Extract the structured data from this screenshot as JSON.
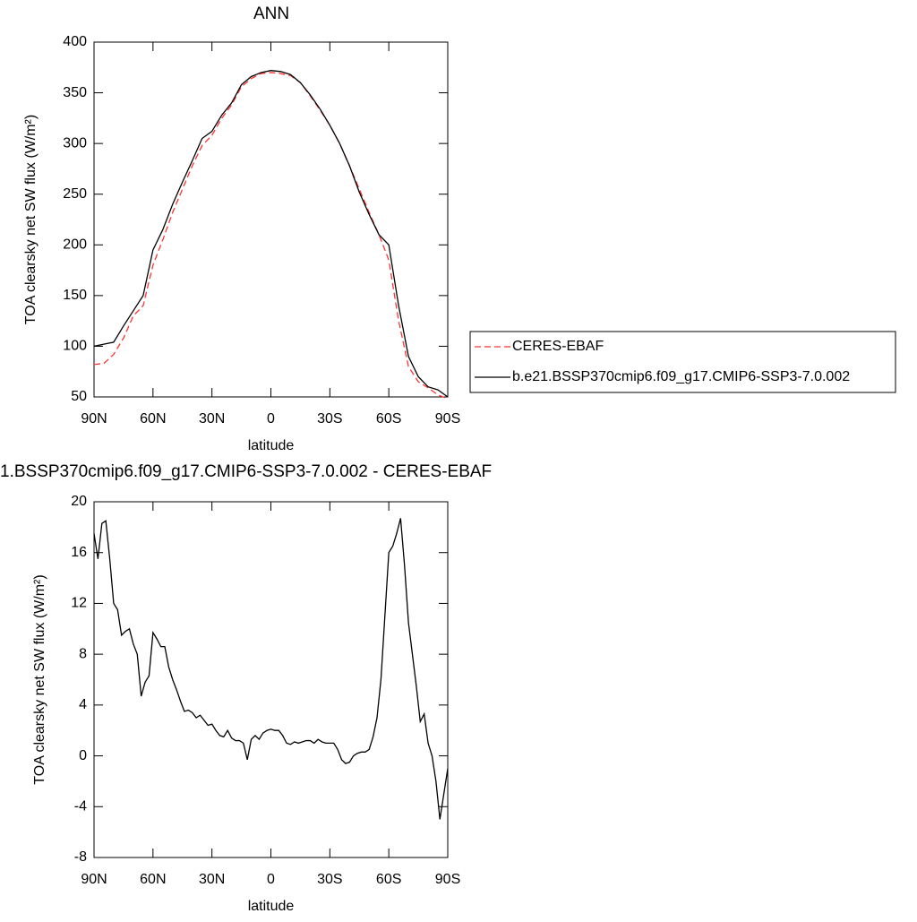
{
  "chart_data": [
    {
      "type": "line",
      "title": "ANN",
      "x_label": "latitude",
      "y_label": "TOA clearsky net SW flux (W/m²)",
      "x": [
        90,
        85,
        80,
        75,
        70,
        65,
        60,
        55,
        50,
        45,
        40,
        35,
        30,
        25,
        20,
        15,
        10,
        5,
        0,
        -5,
        -10,
        -15,
        -20,
        -25,
        -30,
        -35,
        -40,
        -45,
        -50,
        -55,
        -60,
        -65,
        -70,
        -75,
        -80,
        -85,
        -90
      ],
      "series": [
        {
          "name": "CERES-EBAF",
          "color": "#ff3333",
          "style": "dashed",
          "values": [
            82,
            83,
            92,
            108,
            130,
            140,
            180,
            205,
            232,
            255,
            278,
            298,
            308,
            325,
            338,
            356,
            364,
            369,
            370,
            369,
            367,
            360,
            347,
            333,
            318,
            300,
            278,
            255,
            232,
            210,
            185,
            125,
            80,
            65,
            59,
            52,
            48
          ]
        },
        {
          "name": "b.e21.BSSP370cmip6.f09_g17.CMIP6-SSP3-7.0.002",
          "color": "#000000",
          "style": "solid",
          "values": [
            100,
            102,
            104,
            120,
            135,
            150,
            195,
            215,
            240,
            262,
            283,
            305,
            312,
            328,
            340,
            358,
            366,
            370,
            372,
            371,
            368,
            360,
            348,
            334,
            318,
            300,
            278,
            252,
            230,
            210,
            200,
            140,
            90,
            70,
            60,
            57,
            50
          ]
        }
      ],
      "xlim": [
        90,
        -90
      ],
      "xticks": [
        {
          "value": 90,
          "label": "90N"
        },
        {
          "value": 60,
          "label": "60N"
        },
        {
          "value": 30,
          "label": "30N"
        },
        0,
        {
          "value": -30,
          "label": "30S"
        },
        {
          "value": -60,
          "label": "60S"
        },
        {
          "value": -90,
          "label": "90S"
        }
      ],
      "ylim": [
        50,
        400
      ],
      "yticks": [
        50,
        100,
        150,
        200,
        250,
        300,
        350,
        400
      ],
      "legend": "right"
    },
    {
      "type": "line",
      "title": "1.BSSP370cmip6.f09_g17.CMIP6-SSP3-7.0.002 - CERES-EBAF",
      "x_label": "latitude",
      "y_label": "TOA clearsky net SW flux (W/m²)",
      "x": [
        90,
        88,
        86,
        84,
        82,
        80,
        78,
        76,
        74,
        72,
        70,
        68,
        66,
        64,
        62,
        60,
        58,
        56,
        54,
        52,
        50,
        48,
        46,
        44,
        42,
        40,
        38,
        36,
        34,
        32,
        30,
        28,
        26,
        24,
        22,
        20,
        18,
        16,
        14,
        12,
        10,
        8,
        6,
        4,
        2,
        0,
        -2,
        -4,
        -6,
        -8,
        -10,
        -12,
        -14,
        -16,
        -18,
        -20,
        -22,
        -24,
        -26,
        -28,
        -30,
        -32,
        -34,
        -36,
        -38,
        -40,
        -42,
        -44,
        -46,
        -48,
        -50,
        -52,
        -54,
        -56,
        -58,
        -60,
        -62,
        -64,
        -66,
        -68,
        -70,
        -72,
        -74,
        -76,
        -78,
        -80,
        -82,
        -84,
        -86,
        -88,
        -90
      ],
      "series": [
        {
          "color": "#000000",
          "style": "solid",
          "values": [
            17.5,
            15.5,
            18.3,
            18.5,
            15.5,
            12,
            11.5,
            9.5,
            9.8,
            10,
            8.8,
            8,
            4.7,
            5.8,
            6.3,
            9.7,
            9.2,
            8.6,
            8.6,
            7.0,
            6.0,
            5.2,
            4.3,
            3.5,
            3.6,
            3.4,
            3.0,
            3.2,
            2.8,
            2.4,
            2.5,
            2.0,
            1.6,
            1.5,
            2.0,
            1.4,
            1.2,
            1.2,
            1.0,
            -0.3,
            1.3,
            1.6,
            1.3,
            1.8,
            2.0,
            2.1,
            2.0,
            2.0,
            1.6,
            1.0,
            0.9,
            1.1,
            1.0,
            1.1,
            1.2,
            1.2,
            1.0,
            1.3,
            1.1,
            1.0,
            1.0,
            1.0,
            0.5,
            -0.3,
            -0.6,
            -0.5,
            0.0,
            0.2,
            0.3,
            0.3,
            0.5,
            1.5,
            3,
            6,
            11,
            16,
            16.5,
            17.5,
            18.7,
            15,
            10.5,
            8,
            5.5,
            2.7,
            3.3,
            1.0,
            0.0,
            -2,
            -5.0,
            -3,
            -1
          ]
        }
      ],
      "xlim": [
        90,
        -90
      ],
      "xticks": [
        {
          "value": 90,
          "label": "90N"
        },
        {
          "value": 60,
          "label": "60N"
        },
        {
          "value": 30,
          "label": "30N"
        },
        0,
        {
          "value": -30,
          "label": "30S"
        },
        {
          "value": -60,
          "label": "60S"
        },
        {
          "value": -90,
          "label": "90S"
        }
      ],
      "ylim": [
        -8,
        20
      ],
      "yticks": [
        -8,
        -4,
        0,
        4,
        8,
        12,
        16,
        20
      ]
    }
  ]
}
